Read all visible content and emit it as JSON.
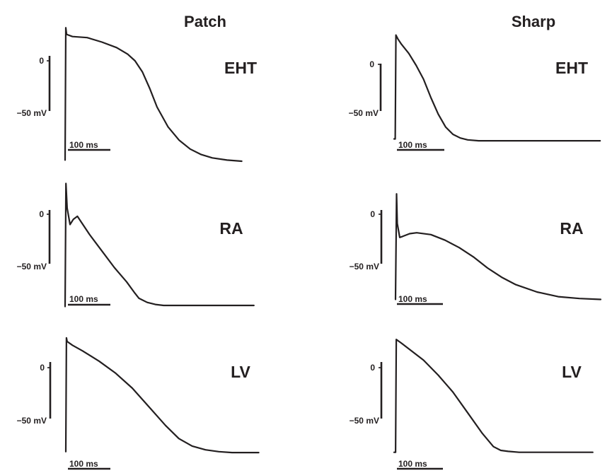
{
  "columns": [
    {
      "title": "Patch"
    },
    {
      "title": "Sharp"
    }
  ],
  "chart_data": {
    "type": "line",
    "scale_bars": {
      "voltage": "−50 mV",
      "time": "100 ms",
      "zero_label": "0"
    },
    "panels": [
      {
        "id": "patch-eht",
        "method": "Patch",
        "label": "EHT",
        "x": [
          0,
          2,
          4,
          20,
          60,
          100,
          140,
          170,
          190,
          210,
          230,
          250,
          280,
          310,
          340,
          370,
          400,
          440,
          480
        ],
        "y": [
          -90,
          30,
          24,
          22,
          21,
          17,
          12,
          6,
          0,
          -10,
          -25,
          -42,
          -60,
          -72,
          -80,
          -85,
          -88,
          -90,
          -91
        ]
      },
      {
        "id": "sharp-eht",
        "method": "Sharp",
        "label": "EHT",
        "x": [
          0,
          3,
          5,
          10,
          20,
          40,
          60,
          80,
          100,
          120,
          140,
          160,
          180,
          200,
          230,
          260,
          300,
          350,
          400,
          440,
          480,
          520,
          560
        ],
        "y": [
          -85,
          -85,
          28,
          24,
          18,
          8,
          -5,
          -20,
          -40,
          -58,
          -72,
          -80,
          -84,
          -86,
          -87,
          -87,
          -87,
          -87,
          -87,
          -87,
          -87,
          -87,
          -87
        ]
      },
      {
        "id": "patch-ra",
        "method": "Patch",
        "label": "RA",
        "x": [
          0,
          2,
          5,
          12,
          20,
          30,
          40,
          60,
          90,
          120,
          150,
          170,
          180,
          200,
          220,
          240,
          260,
          300,
          340,
          380,
          420,
          460
        ],
        "y": [
          -90,
          30,
          6,
          -10,
          -5,
          -2,
          -8,
          -20,
          -36,
          -52,
          -66,
          -77,
          -82,
          -86,
          -88,
          -89,
          -89,
          -89,
          -89,
          -89,
          -89,
          -89
        ]
      },
      {
        "id": "sharp-ra",
        "method": "Sharp",
        "label": "RA",
        "x": [
          0,
          3,
          5,
          12,
          20,
          40,
          60,
          100,
          140,
          180,
          220,
          260,
          300,
          340,
          400,
          460,
          520,
          580
        ],
        "y": [
          -92,
          22,
          -10,
          -25,
          -24,
          -21,
          -20,
          -22,
          -28,
          -36,
          -46,
          -58,
          -68,
          -76,
          -84,
          -89,
          -91,
          -92
        ]
      },
      {
        "id": "patch-lv",
        "method": "Patch",
        "label": "LV",
        "x": [
          0,
          2,
          4,
          20,
          50,
          100,
          150,
          200,
          250,
          300,
          340,
          380,
          420,
          460,
          500,
          540,
          580
        ],
        "y": [
          -90,
          32,
          28,
          24,
          18,
          7,
          -6,
          -22,
          -42,
          -62,
          -76,
          -84,
          -88,
          -90,
          -91,
          -91,
          -91
        ]
      },
      {
        "id": "sharp-lv",
        "method": "Sharp",
        "label": "LV",
        "x": [
          0,
          4,
          6,
          20,
          40,
          80,
          120,
          160,
          200,
          240,
          270,
          290,
          310,
          340,
          380,
          420,
          460,
          500,
          540
        ],
        "y": [
          -90,
          -90,
          30,
          26,
          20,
          8,
          -8,
          -26,
          -48,
          -70,
          -84,
          -88,
          -89,
          -90,
          -90,
          -90,
          -90,
          -90,
          -90
        ]
      }
    ]
  }
}
